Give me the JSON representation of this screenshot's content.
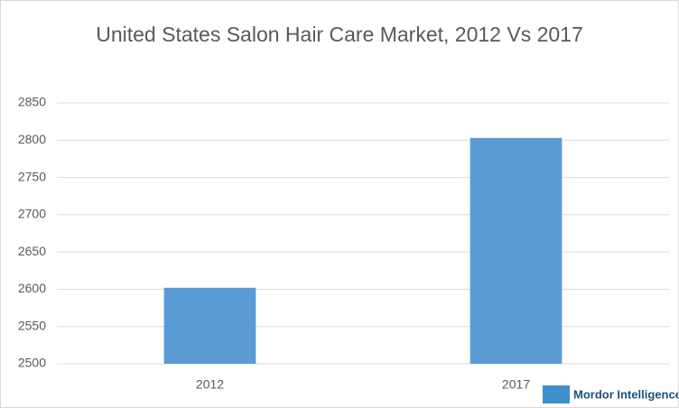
{
  "chart_data": {
    "type": "bar",
    "title": "United States Salon Hair Care Market, 2012 Vs 2017",
    "categories": [
      "2012",
      "2017"
    ],
    "values": [
      2602,
      2803
    ],
    "color": "#5b9bd5",
    "ylim": [
      2500,
      2850
    ],
    "yticks": [
      2500,
      2550,
      2600,
      2650,
      2700,
      2750,
      2800,
      2850
    ],
    "grid": true,
    "logo": "Mordor Intelligence"
  }
}
